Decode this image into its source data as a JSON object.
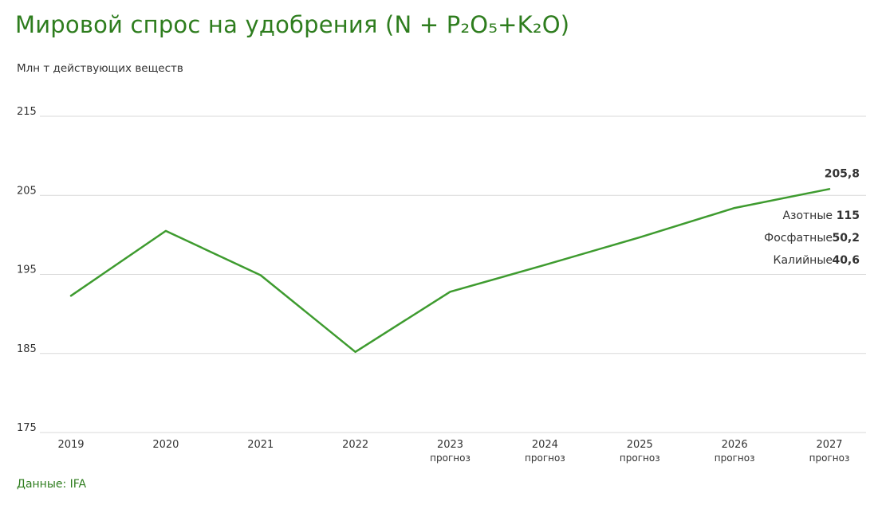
{
  "title": "Мировой спрос на удобрения (N + P₂O₅+K₂O)",
  "unit_label": "Млн т действующих веществ",
  "source": "Данные: IFA",
  "colors": {
    "line": "#3e9b2f",
    "title": "#2e7d1e",
    "grid": "#d9d9d9"
  },
  "chart_data": {
    "type": "line",
    "title": "Мировой спрос на удобрения (N + P₂O₅+K₂O)",
    "ylabel": "Млн т действующих веществ",
    "ylim": [
      175,
      215
    ],
    "yticks": [
      "175",
      "185",
      "195",
      "205",
      "215"
    ],
    "x": [
      "2019",
      "2020",
      "2021",
      "2022",
      "2023",
      "2024",
      "2025",
      "2026",
      "2027"
    ],
    "x_sublabels": [
      "",
      "",
      "",
      "",
      "прогноз",
      "прогноз",
      "прогноз",
      "прогноз",
      "прогноз"
    ],
    "series": [
      {
        "values": [
          192.3,
          200.5,
          194.9,
          185.2,
          192.8,
          196.2,
          199.7,
          203.4,
          205.8
        ]
      }
    ],
    "end_value_label": "205,8",
    "breakdown": [
      {
        "name": "Азотные",
        "value": "115"
      },
      {
        "name": "Фосфатные",
        "value": "50,2"
      },
      {
        "name": "Калийные",
        "value": "40,6"
      }
    ],
    "grid": true
  }
}
